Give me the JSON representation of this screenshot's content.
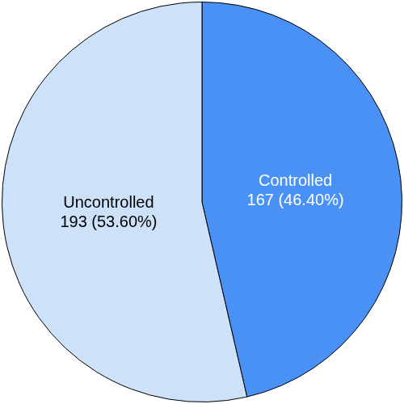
{
  "chart_data": {
    "type": "pie",
    "categories": [
      "Controlled",
      "Uncontrolled"
    ],
    "values": [
      167,
      193
    ],
    "value_labels": [
      "167 (46.40%)",
      "193 (53.60%)"
    ],
    "colors": [
      "#4a91f5",
      "#cde1f9"
    ],
    "data_labels": true,
    "legend": false
  }
}
